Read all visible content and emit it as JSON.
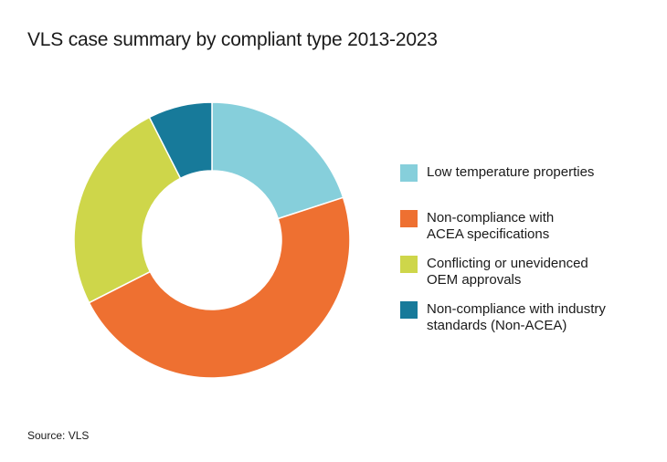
{
  "chart_data": {
    "type": "pie",
    "donut": true,
    "title": "VLS case summary by compliant type 2013-2023",
    "categories": [
      "Low temperature properties",
      "Non-compliance with\nACEA specifications",
      "Conflicting or unevidenced\nOEM approvals",
      "Non-compliance with industry\nstandards (Non-ACEA)"
    ],
    "values": [
      20,
      47.5,
      25,
      7.5
    ],
    "colors": [
      "#86cfdb",
      "#ee7031",
      "#ced64a",
      "#177a9a"
    ],
    "legend_position": "right",
    "source": "Source: VLS"
  }
}
